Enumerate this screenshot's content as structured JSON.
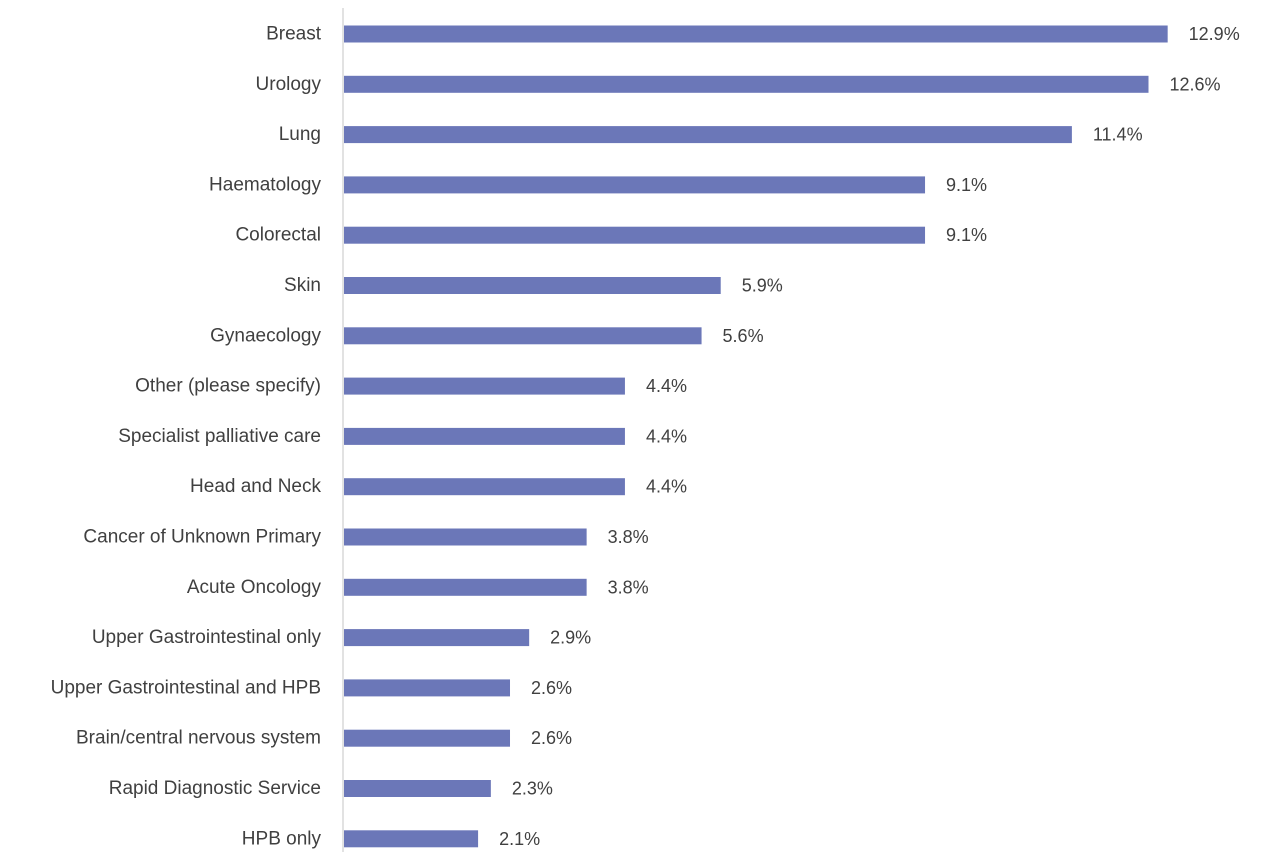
{
  "chart_data": {
    "type": "bar",
    "orientation": "horizontal",
    "categories": [
      "Breast",
      "Urology",
      "Lung",
      "Haematology",
      "Colorectal",
      "Skin",
      "Gynaecology",
      "Other (please specify)",
      "Specialist palliative care",
      "Head and Neck",
      "Cancer of Unknown Primary",
      "Acute Oncology",
      "Upper Gastrointestinal only",
      "Upper Gastrointestinal and HPB",
      "Brain/central nervous system",
      "Rapid Diagnostic Service",
      "HPB only"
    ],
    "values": [
      12.9,
      12.6,
      11.4,
      9.1,
      9.1,
      5.9,
      5.6,
      4.4,
      4.4,
      4.4,
      3.8,
      3.8,
      2.9,
      2.6,
      2.6,
      2.3,
      2.1
    ],
    "value_labels": [
      "12.9%",
      "12.6%",
      "11.4%",
      "9.1%",
      "9.1%",
      "5.9%",
      "5.6%",
      "4.4%",
      "4.4%",
      "4.4%",
      "3.8%",
      "3.8%",
      "2.9%",
      "2.6%",
      "2.6%",
      "2.3%",
      "2.1%"
    ],
    "unit": "%",
    "title": "",
    "xlabel": "",
    "ylabel": "",
    "xlim": [
      0,
      14
    ],
    "grid": false,
    "legend": "none",
    "bar_color": "#6b77b8",
    "axis_color": "#d9d9d9",
    "text_color": "#404040"
  }
}
